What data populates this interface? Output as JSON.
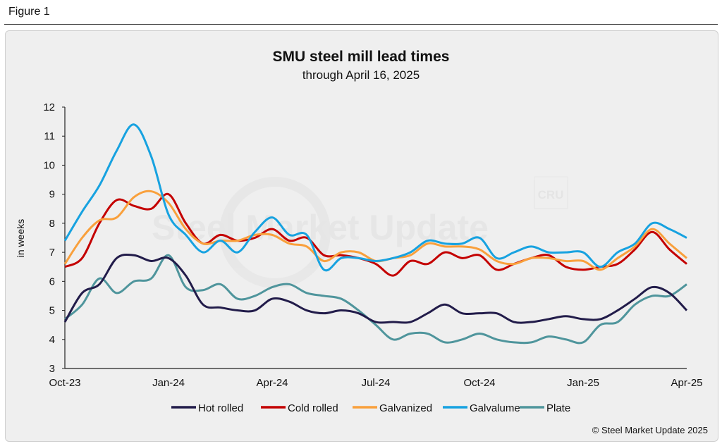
{
  "figure_label": "Figure 1",
  "copyright": "© Steel Market Update 2025",
  "watermark": {
    "text": "Steel Market Update",
    "logo": "CRU"
  },
  "chart_data": {
    "type": "line",
    "title": "SMU steel mill lead times",
    "subtitle": "through April 16, 2025",
    "xlabel": "",
    "ylabel": "in weeks",
    "ylim": [
      3,
      12
    ],
    "yticks": [
      3,
      4,
      5,
      6,
      7,
      8,
      9,
      10,
      11,
      12
    ],
    "xtick_labels": [
      "Oct-23",
      "Jan-24",
      "Apr-24",
      "Jul-24",
      "Oct-24",
      "Jan-25",
      "Apr-25"
    ],
    "grid": false,
    "legend": "bottom",
    "x": [
      "2023-10-01",
      "2023-10-16",
      "2023-11-01",
      "2023-11-16",
      "2023-12-01",
      "2023-12-16",
      "2024-01-01",
      "2024-01-16",
      "2024-02-01",
      "2024-02-16",
      "2024-03-01",
      "2024-03-16",
      "2024-04-01",
      "2024-04-16",
      "2024-05-01",
      "2024-05-16",
      "2024-06-01",
      "2024-06-16",
      "2024-07-01",
      "2024-07-16",
      "2024-08-01",
      "2024-08-16",
      "2024-09-01",
      "2024-09-16",
      "2024-10-01",
      "2024-10-16",
      "2024-11-01",
      "2024-11-16",
      "2024-12-01",
      "2024-12-16",
      "2025-01-01",
      "2025-01-16",
      "2025-02-01",
      "2025-02-16",
      "2025-03-01",
      "2025-03-16",
      "2025-04-16"
    ],
    "series": [
      {
        "name": "Hot rolled",
        "color": "#221c4a",
        "values": [
          4.6,
          5.6,
          5.9,
          6.8,
          6.9,
          6.7,
          6.8,
          6.2,
          5.2,
          5.1,
          5.0,
          5.0,
          5.4,
          5.3,
          5.0,
          4.9,
          5.0,
          4.9,
          4.6,
          4.6,
          4.6,
          4.9,
          5.2,
          4.9,
          4.9,
          4.9,
          4.6,
          4.6,
          4.7,
          4.8,
          4.7,
          4.7,
          5.0,
          5.4,
          5.8,
          5.6,
          5.0
        ]
      },
      {
        "name": "Cold rolled",
        "color": "#c40000",
        "values": [
          6.5,
          6.8,
          8.0,
          8.8,
          8.6,
          8.5,
          9.0,
          8.0,
          7.3,
          7.6,
          7.4,
          7.5,
          7.8,
          7.4,
          7.5,
          6.9,
          6.9,
          6.8,
          6.6,
          6.2,
          6.7,
          6.6,
          7.0,
          6.8,
          6.9,
          6.4,
          6.6,
          6.8,
          6.9,
          6.5,
          6.4,
          6.5,
          6.6,
          7.1,
          7.7,
          7.1,
          6.6
        ]
      },
      {
        "name": "Galvanized",
        "color": "#f9a03c",
        "values": [
          6.6,
          7.5,
          8.1,
          8.2,
          8.9,
          9.1,
          8.7,
          7.8,
          7.3,
          7.4,
          7.4,
          7.6,
          7.6,
          7.3,
          7.2,
          6.7,
          7.0,
          7.0,
          6.7,
          6.8,
          6.9,
          7.3,
          7.2,
          7.2,
          7.1,
          6.7,
          6.6,
          6.8,
          6.8,
          6.7,
          6.7,
          6.4,
          6.8,
          7.2,
          7.8,
          7.3,
          6.8
        ]
      },
      {
        "name": "Galvalume",
        "color": "#17a2e0",
        "values": [
          7.4,
          8.4,
          9.3,
          10.5,
          11.4,
          10.3,
          8.3,
          7.6,
          7.0,
          7.4,
          7.0,
          7.7,
          8.2,
          7.6,
          7.6,
          6.4,
          6.8,
          6.8,
          6.7,
          6.8,
          7.0,
          7.4,
          7.3,
          7.3,
          7.5,
          6.8,
          7.0,
          7.2,
          7.0,
          7.0,
          7.0,
          6.5,
          7.0,
          7.3,
          8.0,
          7.8,
          7.5
        ]
      },
      {
        "name": "Plate",
        "color": "#4f959c",
        "values": [
          4.7,
          5.2,
          6.1,
          5.6,
          6.0,
          6.1,
          6.9,
          5.8,
          5.7,
          5.9,
          5.4,
          5.5,
          5.8,
          5.9,
          5.6,
          5.5,
          5.4,
          5.0,
          4.5,
          4.0,
          4.2,
          4.2,
          3.9,
          4.0,
          4.2,
          4.0,
          3.9,
          3.9,
          4.1,
          4.0,
          3.9,
          4.5,
          4.6,
          5.2,
          5.5,
          5.5,
          5.9
        ]
      }
    ]
  }
}
